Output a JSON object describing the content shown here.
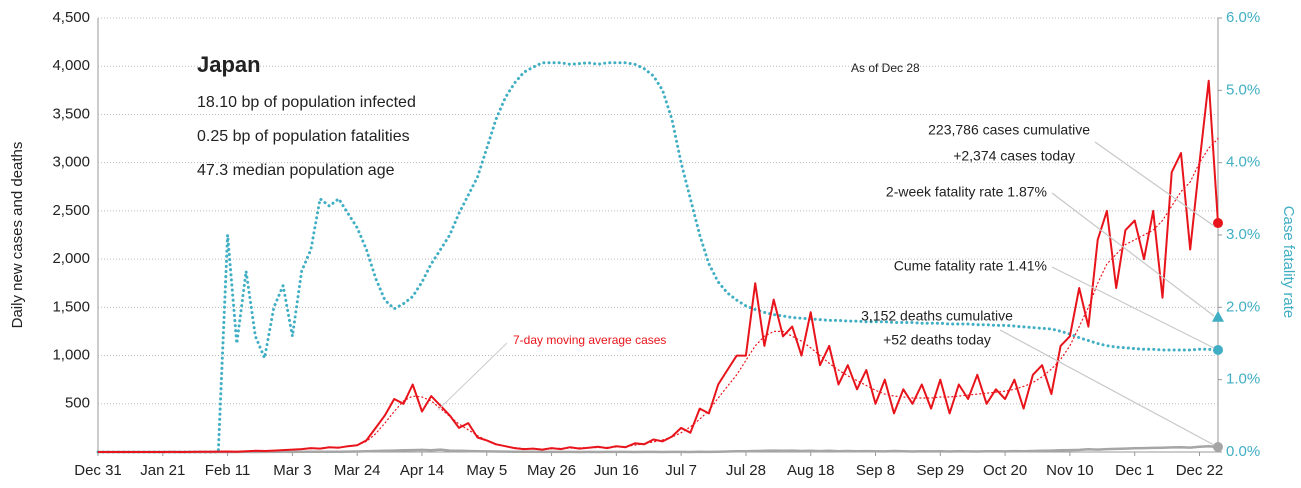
{
  "chart_data": {
    "type": "line",
    "country": "Japan",
    "info": [
      "18.10 bp of population infected",
      "0.25 bp of population fatalities",
      "47.3 median population age"
    ],
    "as_of": "As of Dec 28",
    "avg_label": "7-day moving average cases",
    "y_label": "Daily new cases and deaths",
    "y2_label": "Case fatality rate",
    "categories": [
      "Dec 31",
      null,
      null,
      null,
      null,
      null,
      null,
      "Jan 21",
      null,
      null,
      null,
      null,
      null,
      null,
      "Feb 11",
      null,
      null,
      null,
      null,
      null,
      null,
      "Mar 3",
      null,
      null,
      null,
      null,
      null,
      null,
      "Mar 24",
      null,
      null,
      null,
      null,
      null,
      null,
      "Apr 14",
      null,
      null,
      null,
      null,
      null,
      null,
      "May 5",
      null,
      null,
      null,
      null,
      null,
      null,
      "May 26",
      null,
      null,
      null,
      null,
      null,
      null,
      "Jun 16",
      null,
      null,
      null,
      null,
      null,
      null,
      "Jul 7",
      null,
      null,
      null,
      null,
      null,
      null,
      "Jul 28",
      null,
      null,
      null,
      null,
      null,
      null,
      "Aug 18",
      null,
      null,
      null,
      null,
      null,
      null,
      "Sep 8",
      null,
      null,
      null,
      null,
      null,
      null,
      "Sep 29",
      null,
      null,
      null,
      null,
      null,
      null,
      "Oct 20",
      null,
      null,
      null,
      null,
      null,
      null,
      "Nov 10",
      null,
      null,
      null,
      null,
      null,
      null,
      "Dec 1",
      null,
      null,
      null,
      null,
      null,
      null,
      "Dec 22",
      null,
      null
    ],
    "series": [
      {
        "name": "Daily new cases",
        "color": "#e8141b",
        "dash": "solid",
        "width": 2,
        "axis": "y",
        "values": [
          0,
          0,
          0,
          0,
          0,
          0,
          0,
          0,
          1,
          0,
          1,
          2,
          3,
          4,
          5,
          3,
          8,
          12,
          10,
          15,
          20,
          25,
          30,
          40,
          35,
          50,
          45,
          60,
          70,
          120,
          250,
          380,
          550,
          500,
          700,
          420,
          580,
          480,
          380,
          250,
          300,
          150,
          120,
          80,
          60,
          40,
          30,
          35,
          25,
          40,
          30,
          50,
          35,
          45,
          55,
          40,
          60,
          50,
          90,
          80,
          130,
          110,
          160,
          250,
          200,
          450,
          400,
          700,
          850,
          1000,
          1000,
          1750,
          1100,
          1580,
          1200,
          1300,
          1000,
          1450,
          900,
          1100,
          700,
          900,
          650,
          850,
          500,
          750,
          400,
          650,
          500,
          700,
          450,
          750,
          400,
          700,
          550,
          800,
          500,
          650,
          550,
          750,
          450,
          800,
          900,
          600,
          1100,
          1200,
          1700,
          1300,
          2200,
          2500,
          1700,
          2300,
          2400,
          2000,
          2500,
          1600,
          2900,
          3100,
          2100,
          3000,
          3850,
          2374
        ]
      },
      {
        "name": "7-day moving average cases",
        "color": "#e8141b",
        "dash": "dotted",
        "width": 1.2,
        "axis": "y",
        "values": [
          0,
          0,
          0,
          0,
          0,
          0,
          0,
          0,
          0,
          1,
          1,
          1,
          2,
          3,
          5,
          7,
          8,
          10,
          12,
          14,
          18,
          25,
          30,
          35,
          40,
          45,
          50,
          55,
          70,
          110,
          190,
          300,
          420,
          530,
          580,
          570,
          530,
          450,
          370,
          290,
          230,
          170,
          120,
          85,
          60,
          45,
          35,
          32,
          30,
          33,
          38,
          40,
          42,
          44,
          46,
          48,
          52,
          58,
          70,
          85,
          105,
          125,
          155,
          200,
          260,
          340,
          430,
          560,
          680,
          800,
          950,
          1100,
          1200,
          1250,
          1250,
          1200,
          1150,
          1080,
          1000,
          920,
          850,
          790,
          740,
          690,
          640,
          600,
          580,
          570,
          560,
          560,
          560,
          570,
          570,
          580,
          590,
          600,
          610,
          620,
          630,
          650,
          680,
          720,
          780,
          860,
          960,
          1100,
          1300,
          1500,
          1750,
          1950,
          2050,
          2150,
          2200,
          2250,
          2300,
          2400,
          2550,
          2700,
          2800,
          3000,
          3150,
          3250
        ]
      },
      {
        "name": "Case fatality rate",
        "color": "#40aec3",
        "dash": "dotted",
        "width": 3,
        "axis": "y2",
        "values": [
          0,
          0,
          0,
          0,
          0,
          0,
          0,
          0,
          0,
          0,
          0,
          0,
          0,
          0,
          3.0,
          1.5,
          2.5,
          1.6,
          1.3,
          2.0,
          2.3,
          1.6,
          2.5,
          2.8,
          3.5,
          3.4,
          3.5,
          3.3,
          3.1,
          2.8,
          2.4,
          2.1,
          1.98,
          2.05,
          2.15,
          2.35,
          2.6,
          2.8,
          3.0,
          3.3,
          3.55,
          3.8,
          4.2,
          4.6,
          4.9,
          5.1,
          5.25,
          5.32,
          5.38,
          5.38,
          5.38,
          5.36,
          5.37,
          5.38,
          5.36,
          5.38,
          5.38,
          5.38,
          5.36,
          5.3,
          5.2,
          5.0,
          4.6,
          4.0,
          3.5,
          3.0,
          2.6,
          2.35,
          2.2,
          2.1,
          2.02,
          1.97,
          1.93,
          1.9,
          1.88,
          1.86,
          1.85,
          1.84,
          1.83,
          1.82,
          1.82,
          1.81,
          1.81,
          1.8,
          1.8,
          1.8,
          1.79,
          1.79,
          1.79,
          1.78,
          1.78,
          1.78,
          1.77,
          1.77,
          1.77,
          1.76,
          1.76,
          1.75,
          1.75,
          1.74,
          1.73,
          1.72,
          1.71,
          1.7,
          1.67,
          1.63,
          1.58,
          1.54,
          1.5,
          1.47,
          1.45,
          1.44,
          1.43,
          1.42,
          1.42,
          1.41,
          1.41,
          1.41,
          1.41,
          1.42,
          1.42,
          1.41
        ]
      },
      {
        "name": "Daily deaths",
        "color": "#a6a6a6",
        "dash": "solid",
        "width": 2.5,
        "axis": "y",
        "values": [
          0,
          0,
          0,
          0,
          0,
          0,
          0,
          0,
          0,
          0,
          0,
          0,
          0,
          0,
          0,
          0,
          1,
          0,
          1,
          1,
          2,
          1,
          2,
          2,
          3,
          2,
          3,
          4,
          5,
          8,
          10,
          12,
          15,
          18,
          20,
          22,
          18,
          25,
          15,
          12,
          10,
          8,
          6,
          5,
          4,
          3,
          2,
          2,
          1,
          1,
          1,
          1,
          0,
          1,
          0,
          1,
          1,
          1,
          0,
          1,
          1,
          0,
          1,
          1,
          0,
          2,
          1,
          3,
          5,
          7,
          8,
          10,
          12,
          14,
          12,
          15,
          10,
          13,
          9,
          12,
          8,
          10,
          7,
          9,
          8,
          6,
          10,
          7,
          5,
          8,
          6,
          7,
          5,
          8,
          6,
          5,
          8,
          7,
          6,
          9,
          8,
          10,
          12,
          15,
          18,
          20,
          22,
          28,
          25,
          30,
          32,
          35,
          38,
          40,
          42,
          45,
          48,
          50,
          46,
          55,
          60,
          52
        ]
      }
    ],
    "two_week_fatality_rate": 1.87,
    "callouts": [
      "223,786 cases cumulative",
      "+2,374 cases today",
      "2-week fatality rate 1.87%",
      "Cume fatality rate 1.41%",
      "3,152 deaths cumulative",
      "+52 deaths today"
    ],
    "ylim": [
      0,
      4500
    ],
    "yticks": [
      500,
      {
        "value": 1000,
        "label": "1,000"
      },
      {
        "value": 1500,
        "label": "1,500"
      },
      {
        "value": 2000,
        "label": "2,000"
      },
      {
        "value": 2500,
        "label": "2,500"
      },
      {
        "value": 3000,
        "label": "3,000"
      },
      {
        "value": 3500,
        "label": "3,500"
      },
      {
        "value": 4000,
        "label": "4,000"
      },
      {
        "value": 4500,
        "label": "4,500"
      }
    ],
    "y2lim": [
      0,
      6
    ],
    "y2ticks": [
      {
        "value": 0,
        "label": "0.0%"
      },
      {
        "value": 1,
        "label": "1.0%"
      },
      {
        "value": 2,
        "label": "2.0%"
      },
      {
        "value": 3,
        "label": "3.0%"
      },
      {
        "value": 4,
        "label": "4.0%"
      },
      {
        "value": 5,
        "label": "5.0%"
      },
      {
        "value": 6,
        "label": "6.0%"
      }
    ],
    "grid": true
  }
}
